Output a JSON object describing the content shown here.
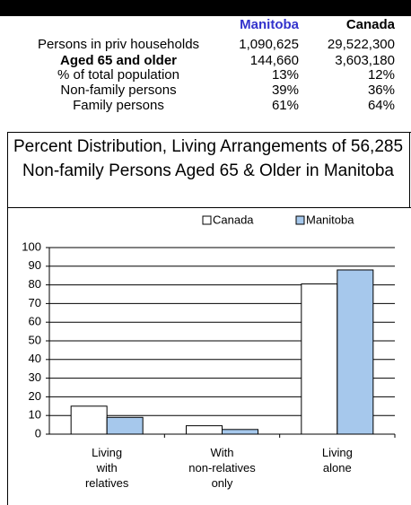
{
  "table": {
    "header": [
      "Manitoba",
      "Canada"
    ],
    "rows": [
      [
        "Persons in priv households",
        "1,090,625",
        "29,522,300"
      ],
      [
        "Aged 65 and older",
        "144,660",
        "3,603,180"
      ],
      [
        "% of total population",
        "13%",
        "12%"
      ],
      [
        "Non-family persons",
        "39%",
        "36%"
      ],
      [
        "Family persons",
        "61%",
        "64%"
      ]
    ]
  },
  "chart_data": {
    "type": "bar",
    "title": "Percent Distribution, Living Arrangements of 56,285 Non-family Persons Aged 65 & Older in Manitoba",
    "categories": [
      "Living\nwith\nrelatives",
      "With\nnon-relatives\nonly",
      "Living\nalone"
    ],
    "series": [
      {
        "name": "Canada",
        "color": "#ffffff",
        "values": [
          15,
          4.5,
          80.5
        ]
      },
      {
        "name": "Manitoba",
        "color": "#a6c8ec",
        "values": [
          9,
          2.5,
          88
        ]
      }
    ],
    "ylim": [
      0,
      100
    ],
    "yticks": [
      0,
      10,
      20,
      30,
      40,
      50,
      60,
      70,
      80,
      90,
      100
    ],
    "grid": true,
    "legend": "top"
  }
}
